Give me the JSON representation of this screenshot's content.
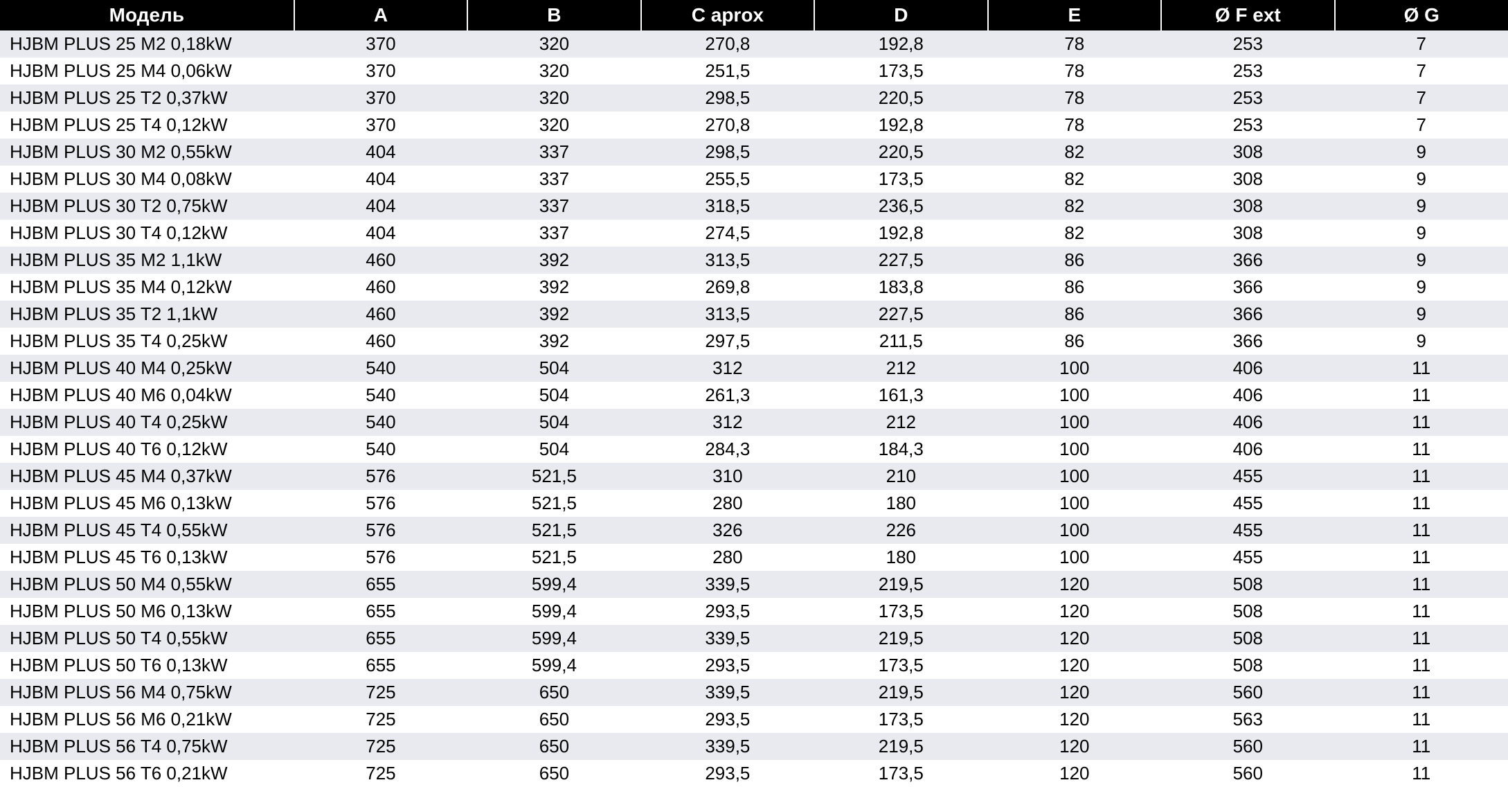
{
  "table": {
    "columns": [
      "Модель",
      "A",
      "B",
      "C  aprox",
      "D",
      "E",
      "Ø F ext",
      "Ø G"
    ],
    "column_widths_pct": [
      19.5,
      11.5,
      11.5,
      11.5,
      11.5,
      11.5,
      11.5,
      11.5
    ],
    "header_bg": "#000000",
    "header_text_color": "#ffffff",
    "header_fontsize": 28,
    "header_fontweight": "bold",
    "row_odd_bg": "#e8eaef",
    "row_even_bg": "#ffffff",
    "cell_fontsize": 26,
    "cell_text_color": "#000000",
    "first_col_align": "left",
    "other_col_align": "center",
    "rows": [
      [
        "HJBM PLUS 25 M2 0,18kW",
        "370",
        "320",
        "270,8",
        "192,8",
        "78",
        "253",
        "7"
      ],
      [
        "HJBM PLUS 25 M4 0,06kW",
        "370",
        "320",
        "251,5",
        "173,5",
        "78",
        "253",
        "7"
      ],
      [
        "HJBM PLUS 25 T2 0,37kW",
        "370",
        "320",
        "298,5",
        "220,5",
        "78",
        "253",
        "7"
      ],
      [
        "HJBM PLUS 25 T4 0,12kW",
        "370",
        "320",
        "270,8",
        "192,8",
        "78",
        "253",
        "7"
      ],
      [
        "HJBM PLUS 30 M2 0,55kW",
        "404",
        "337",
        "298,5",
        "220,5",
        "82",
        "308",
        "9"
      ],
      [
        "HJBM PLUS 30 M4 0,08kW",
        "404",
        "337",
        "255,5",
        "173,5",
        "82",
        "308",
        "9"
      ],
      [
        "HJBM PLUS 30 T2 0,75kW",
        "404",
        "337",
        "318,5",
        "236,5",
        "82",
        "308",
        "9"
      ],
      [
        "HJBM PLUS 30 T4 0,12kW",
        "404",
        "337",
        "274,5",
        "192,8",
        "82",
        "308",
        "9"
      ],
      [
        "HJBM PLUS 35 M2 1,1kW",
        "460",
        "392",
        "313,5",
        "227,5",
        "86",
        "366",
        "9"
      ],
      [
        "HJBM PLUS 35 M4 0,12kW",
        "460",
        "392",
        "269,8",
        "183,8",
        "86",
        "366",
        "9"
      ],
      [
        "HJBM PLUS 35 T2 1,1kW",
        "460",
        "392",
        "313,5",
        "227,5",
        "86",
        "366",
        "9"
      ],
      [
        "HJBM PLUS 35 T4 0,25kW",
        "460",
        "392",
        "297,5",
        "211,5",
        "86",
        "366",
        "9"
      ],
      [
        "HJBM PLUS 40 M4 0,25kW",
        "540",
        "504",
        "312",
        "212",
        "100",
        "406",
        "11"
      ],
      [
        "HJBM PLUS 40 M6 0,04kW",
        "540",
        "504",
        "261,3",
        "161,3",
        "100",
        "406",
        "11"
      ],
      [
        "HJBM PLUS 40 T4 0,25kW",
        "540",
        "504",
        "312",
        "212",
        "100",
        "406",
        "11"
      ],
      [
        "HJBM PLUS 40 T6 0,12kW",
        "540",
        "504",
        "284,3",
        "184,3",
        "100",
        "406",
        "11"
      ],
      [
        "HJBM PLUS 45 M4 0,37kW",
        "576",
        "521,5",
        "310",
        "210",
        "100",
        "455",
        "11"
      ],
      [
        "HJBM PLUS 45 M6 0,13kW",
        "576",
        "521,5",
        "280",
        "180",
        "100",
        "455",
        "11"
      ],
      [
        "HJBM PLUS 45 T4 0,55kW",
        "576",
        "521,5",
        "326",
        "226",
        "100",
        "455",
        "11"
      ],
      [
        "HJBM PLUS 45 T6 0,13kW",
        "576",
        "521,5",
        "280",
        "180",
        "100",
        "455",
        "11"
      ],
      [
        "HJBM PLUS 50 M4 0,55kW",
        "655",
        "599,4",
        "339,5",
        "219,5",
        "120",
        "508",
        "11"
      ],
      [
        "HJBM PLUS 50 M6 0,13kW",
        "655",
        "599,4",
        "293,5",
        "173,5",
        "120",
        "508",
        "11"
      ],
      [
        "HJBM PLUS 50 T4 0,55kW",
        "655",
        "599,4",
        "339,5",
        "219,5",
        "120",
        "508",
        "11"
      ],
      [
        "HJBM PLUS 50 T6 0,13kW",
        "655",
        "599,4",
        "293,5",
        "173,5",
        "120",
        "508",
        "11"
      ],
      [
        "HJBM PLUS 56 M4 0,75kW",
        "725",
        "650",
        "339,5",
        "219,5",
        "120",
        "560",
        "11"
      ],
      [
        "HJBM PLUS 56 M6 0,21kW",
        "725",
        "650",
        "293,5",
        "173,5",
        "120",
        "563",
        "11"
      ],
      [
        "HJBM PLUS 56 T4 0,75kW",
        "725",
        "650",
        "339,5",
        "219,5",
        "120",
        "560",
        "11"
      ],
      [
        "HJBM PLUS 56 T6 0,21kW",
        "725",
        "650",
        "293,5",
        "173,5",
        "120",
        "560",
        "11"
      ]
    ]
  }
}
